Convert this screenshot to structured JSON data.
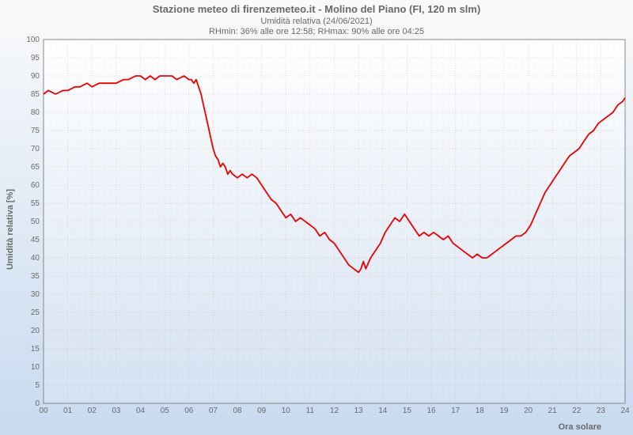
{
  "chart": {
    "type": "line",
    "title": "Stazione meteo di firenzemeteo.it - Molino del Piano (FI, 120 m slm)",
    "subtitle1": "Umidità relativa (24/06/2021)",
    "subtitle2": "RHmin: 36% alle ore 12:58; RHmax: 90% alle ore 04:25",
    "ylabel": "Umidità relativa [%]",
    "xlabel": "Ora solare",
    "title_fontsize": 13,
    "subtitle_fontsize": 11,
    "label_fontsize": 11,
    "tick_fontsize": 10,
    "ylim": [
      0,
      100
    ],
    "xlim": [
      0,
      24
    ],
    "ytick_step": 5,
    "xtick_step": 1,
    "background_gradient": {
      "top": "#fafafa",
      "bottom": "#c8daf0"
    },
    "plot_gradient": {
      "top": "#ffffff",
      "bottom": "#d4e2f2"
    },
    "grid_color": "#d48080",
    "border_color": "#888888",
    "line_color": "#ee0000",
    "line_width": 1.8,
    "title_color": "#6a6a6a",
    "data": [
      [
        0.0,
        85
      ],
      [
        0.2,
        86
      ],
      [
        0.5,
        85
      ],
      [
        0.8,
        86
      ],
      [
        1.0,
        86
      ],
      [
        1.3,
        87
      ],
      [
        1.5,
        87
      ],
      [
        1.8,
        88
      ],
      [
        2.0,
        87
      ],
      [
        2.3,
        88
      ],
      [
        2.5,
        88
      ],
      [
        2.8,
        88
      ],
      [
        3.0,
        88
      ],
      [
        3.3,
        89
      ],
      [
        3.5,
        89
      ],
      [
        3.8,
        90
      ],
      [
        4.0,
        90
      ],
      [
        4.2,
        89
      ],
      [
        4.4,
        90
      ],
      [
        4.6,
        89
      ],
      [
        4.8,
        90
      ],
      [
        5.0,
        90
      ],
      [
        5.3,
        90
      ],
      [
        5.5,
        89
      ],
      [
        5.8,
        90
      ],
      [
        6.0,
        89
      ],
      [
        6.1,
        89
      ],
      [
        6.2,
        88
      ],
      [
        6.3,
        89
      ],
      [
        6.4,
        87
      ],
      [
        6.5,
        85
      ],
      [
        6.6,
        82
      ],
      [
        6.7,
        79
      ],
      [
        6.8,
        76
      ],
      [
        6.9,
        73
      ],
      [
        7.0,
        70
      ],
      [
        7.1,
        68
      ],
      [
        7.2,
        67
      ],
      [
        7.3,
        65
      ],
      [
        7.4,
        66
      ],
      [
        7.5,
        65
      ],
      [
        7.6,
        63
      ],
      [
        7.7,
        64
      ],
      [
        7.8,
        63
      ],
      [
        8.0,
        62
      ],
      [
        8.2,
        63
      ],
      [
        8.4,
        62
      ],
      [
        8.6,
        63
      ],
      [
        8.8,
        62
      ],
      [
        9.0,
        60
      ],
      [
        9.2,
        58
      ],
      [
        9.4,
        56
      ],
      [
        9.6,
        55
      ],
      [
        9.8,
        53
      ],
      [
        10.0,
        51
      ],
      [
        10.2,
        52
      ],
      [
        10.4,
        50
      ],
      [
        10.6,
        51
      ],
      [
        10.8,
        50
      ],
      [
        11.0,
        49
      ],
      [
        11.2,
        48
      ],
      [
        11.4,
        46
      ],
      [
        11.6,
        47
      ],
      [
        11.8,
        45
      ],
      [
        12.0,
        44
      ],
      [
        12.2,
        42
      ],
      [
        12.4,
        40
      ],
      [
        12.6,
        38
      ],
      [
        12.8,
        37
      ],
      [
        13.0,
        36
      ],
      [
        13.1,
        37
      ],
      [
        13.2,
        39
      ],
      [
        13.3,
        37
      ],
      [
        13.5,
        40
      ],
      [
        13.7,
        42
      ],
      [
        13.9,
        44
      ],
      [
        14.1,
        47
      ],
      [
        14.3,
        49
      ],
      [
        14.5,
        51
      ],
      [
        14.7,
        50
      ],
      [
        14.9,
        52
      ],
      [
        15.1,
        50
      ],
      [
        15.3,
        48
      ],
      [
        15.5,
        46
      ],
      [
        15.7,
        47
      ],
      [
        15.9,
        46
      ],
      [
        16.1,
        47
      ],
      [
        16.3,
        46
      ],
      [
        16.5,
        45
      ],
      [
        16.7,
        46
      ],
      [
        16.9,
        44
      ],
      [
        17.1,
        43
      ],
      [
        17.3,
        42
      ],
      [
        17.5,
        41
      ],
      [
        17.7,
        40
      ],
      [
        17.9,
        41
      ],
      [
        18.1,
        40
      ],
      [
        18.3,
        40
      ],
      [
        18.5,
        41
      ],
      [
        18.7,
        42
      ],
      [
        18.9,
        43
      ],
      [
        19.1,
        44
      ],
      [
        19.3,
        45
      ],
      [
        19.5,
        46
      ],
      [
        19.7,
        46
      ],
      [
        19.9,
        47
      ],
      [
        20.1,
        49
      ],
      [
        20.3,
        52
      ],
      [
        20.5,
        55
      ],
      [
        20.7,
        58
      ],
      [
        20.9,
        60
      ],
      [
        21.1,
        62
      ],
      [
        21.3,
        64
      ],
      [
        21.5,
        66
      ],
      [
        21.7,
        68
      ],
      [
        21.9,
        69
      ],
      [
        22.1,
        70
      ],
      [
        22.3,
        72
      ],
      [
        22.5,
        74
      ],
      [
        22.7,
        75
      ],
      [
        22.9,
        77
      ],
      [
        23.1,
        78
      ],
      [
        23.3,
        79
      ],
      [
        23.5,
        80
      ],
      [
        23.7,
        82
      ],
      [
        23.9,
        83
      ],
      [
        24.0,
        84
      ]
    ]
  },
  "xticks": [
    "00",
    "01",
    "02",
    "03",
    "04",
    "05",
    "06",
    "07",
    "08",
    "09",
    "10",
    "11",
    "12",
    "13",
    "14",
    "15",
    "16",
    "17",
    "18",
    "19",
    "20",
    "21",
    "22",
    "23",
    "24"
  ]
}
